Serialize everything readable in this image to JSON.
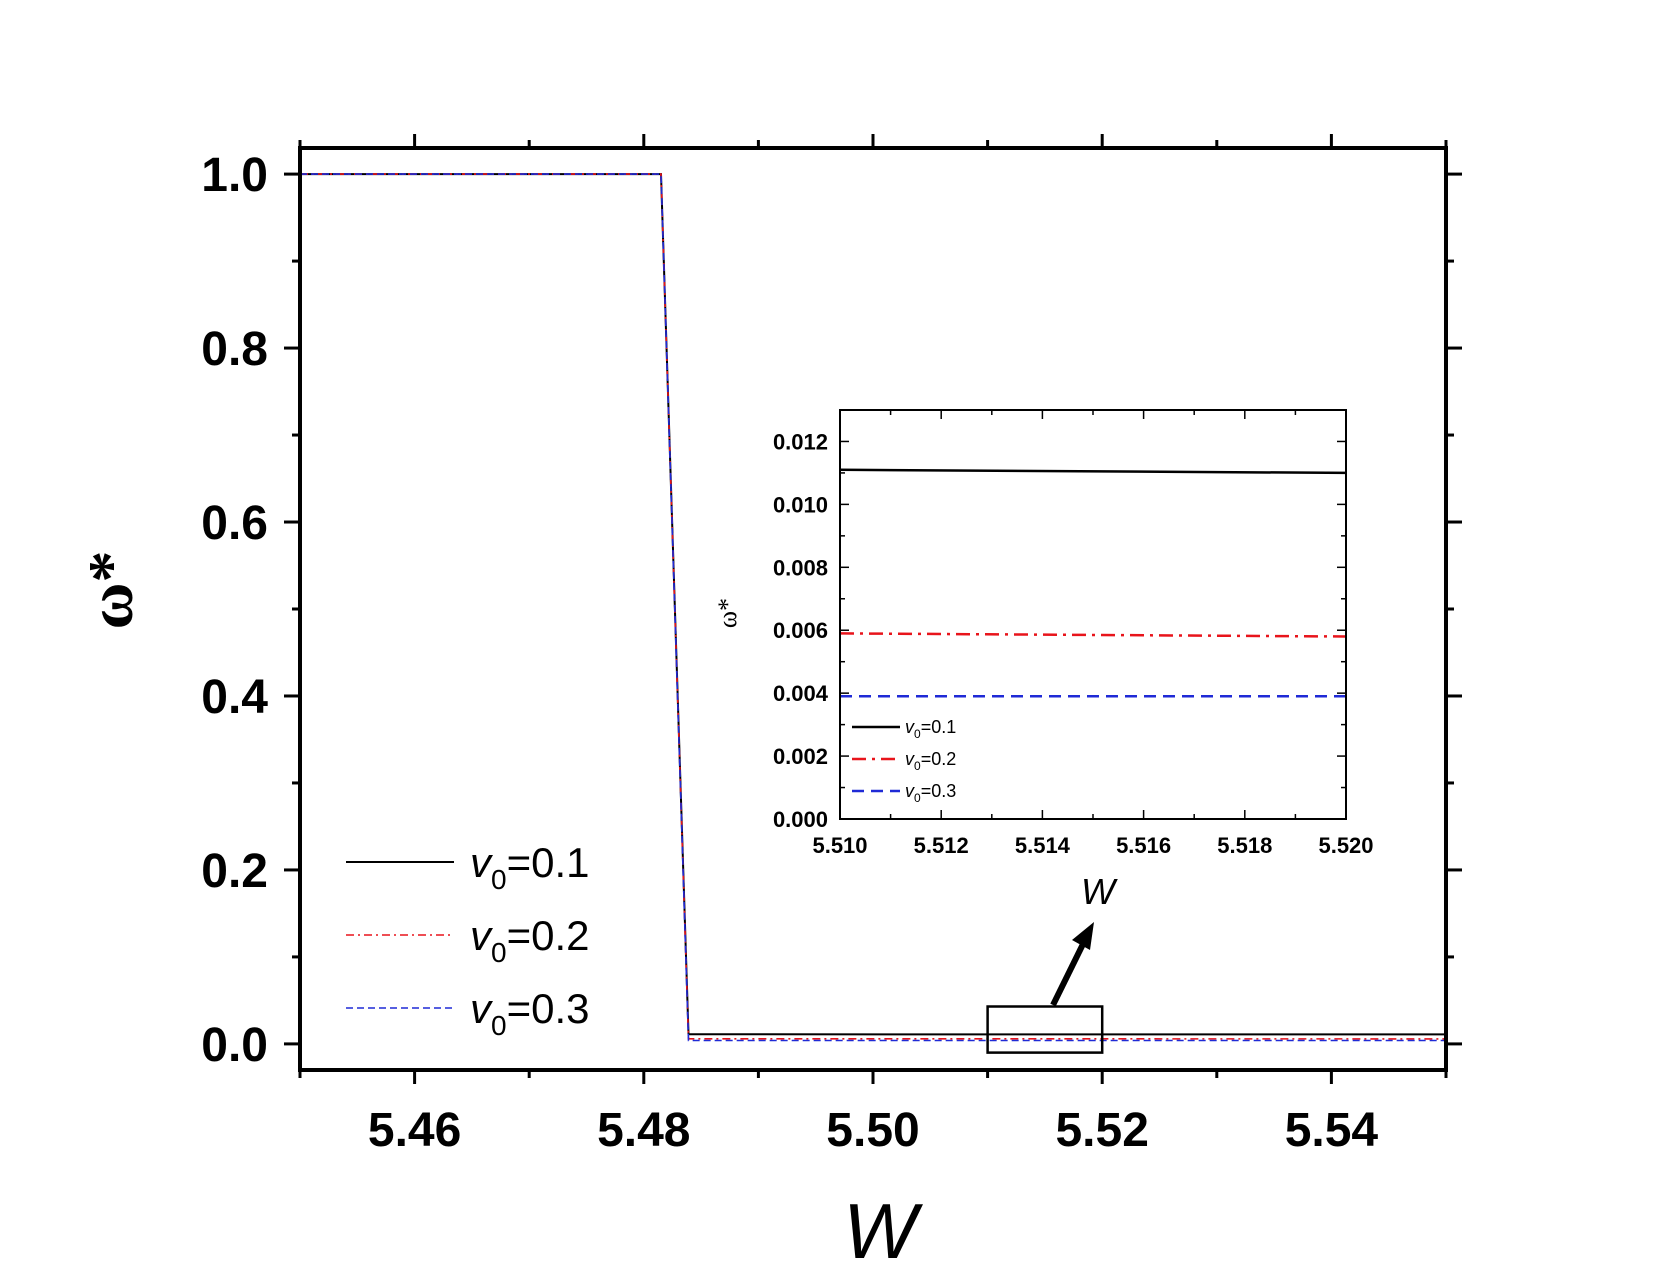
{
  "chart_data": [
    {
      "id": "main",
      "type": "line",
      "title": "",
      "xlabel": "W",
      "ylabel": "ω*",
      "xlim": [
        5.45,
        5.55
      ],
      "ylim": [
        -0.03,
        1.03
      ],
      "xticks": [
        5.46,
        5.48,
        5.5,
        5.52,
        5.54
      ],
      "xtick_labels": [
        "5.46",
        "5.48",
        "5.50",
        "5.52",
        "5.54"
      ],
      "yticks": [
        0.0,
        0.2,
        0.4,
        0.6,
        0.8,
        1.0
      ],
      "ytick_labels": [
        "0.0",
        "0.2",
        "0.4",
        "0.6",
        "0.8",
        "1.0"
      ],
      "grid": false,
      "legend_position": "bottom-left",
      "series": [
        {
          "name": "v0=0.1",
          "legend_base": "v",
          "legend_sub": "0",
          "legend_value": "=0.1",
          "color": "#000000",
          "style": "solid",
          "x": [
            5.45,
            5.4815,
            5.4839,
            5.55
          ],
          "y": [
            1.0,
            1.0,
            0.0111,
            0.0109
          ]
        },
        {
          "name": "v0=0.2",
          "legend_base": "v",
          "legend_sub": "0",
          "legend_value": "=0.2",
          "color": "#e8141b",
          "style": "dashdot",
          "x": [
            5.45,
            5.4815,
            5.4839,
            5.55
          ],
          "y": [
            1.0,
            1.0,
            0.0059,
            0.0058
          ]
        },
        {
          "name": "v0=0.3",
          "legend_base": "v",
          "legend_sub": "0",
          "legend_value": "=0.3",
          "color": "#1f2ad6",
          "style": "dashed",
          "x": [
            5.45,
            5.4815,
            5.4839,
            5.55
          ],
          "y": [
            1.0,
            1.0,
            0.0039,
            0.0039
          ]
        }
      ],
      "annotations": [
        {
          "type": "zoom-box",
          "x_range": [
            5.51,
            5.52
          ],
          "y_range": [
            -0.01,
            0.043
          ]
        },
        {
          "type": "arrow",
          "label": "W"
        }
      ]
    },
    {
      "id": "inset",
      "type": "line",
      "title": "",
      "xlabel": "",
      "ylabel": "ω*",
      "xlim": [
        5.51,
        5.52
      ],
      "ylim": [
        0.0,
        0.013
      ],
      "xticks": [
        5.51,
        5.512,
        5.514,
        5.516,
        5.518,
        5.52
      ],
      "xtick_labels": [
        "5.510",
        "5.512",
        "5.514",
        "5.516",
        "5.518",
        "5.520"
      ],
      "yticks": [
        0.0,
        0.002,
        0.004,
        0.006,
        0.008,
        0.01,
        0.012
      ],
      "ytick_labels": [
        "0.000",
        "0.002",
        "0.004",
        "0.006",
        "0.008",
        "0.010",
        "0.012"
      ],
      "grid": false,
      "legend_position": "bottom-left",
      "series": [
        {
          "name": "v0=0.1",
          "legend_base": "v",
          "legend_sub": "0",
          "legend_value": "=0.1",
          "color": "#000000",
          "style": "solid",
          "x": [
            5.51,
            5.52
          ],
          "y": [
            0.0111,
            0.011
          ]
        },
        {
          "name": "v0=0.2",
          "legend_base": "v",
          "legend_sub": "0",
          "legend_value": "=0.2",
          "color": "#e8141b",
          "style": "dashdot",
          "x": [
            5.51,
            5.52
          ],
          "y": [
            0.0059,
            0.0058
          ]
        },
        {
          "name": "v0=0.3",
          "legend_base": "v",
          "legend_sub": "0",
          "legend_value": "=0.3",
          "color": "#1f2ad6",
          "style": "dashed",
          "x": [
            5.51,
            5.52
          ],
          "y": [
            0.0039,
            0.0039
          ]
        }
      ]
    }
  ]
}
